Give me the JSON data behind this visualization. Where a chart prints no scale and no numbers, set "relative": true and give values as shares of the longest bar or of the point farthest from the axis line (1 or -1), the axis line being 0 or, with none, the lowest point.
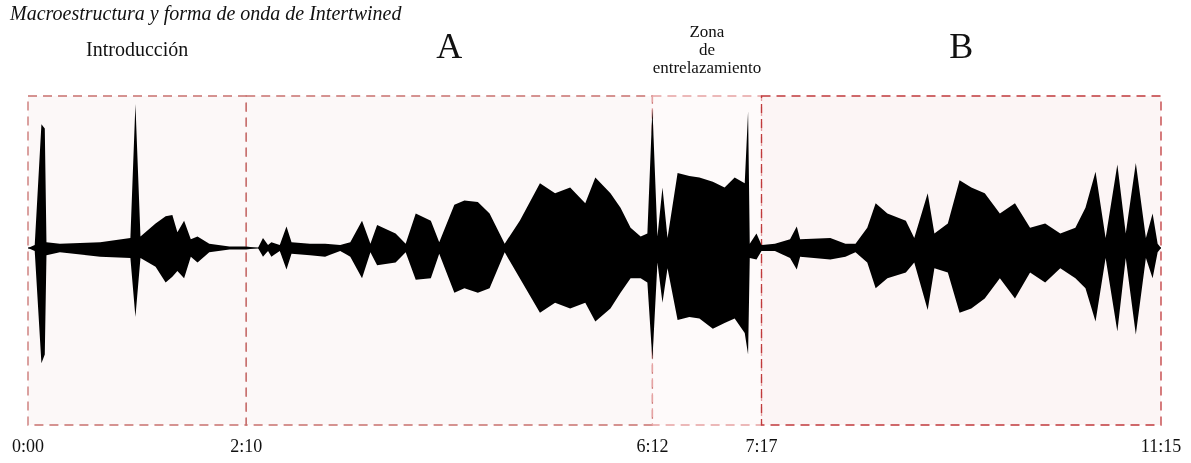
{
  "chart_data": {
    "type": "area",
    "title": "Macroestructura y forma de onda de Intertwined",
    "relative": true,
    "grid": false,
    "x": [
      0,
      4,
      8,
      10,
      11,
      19,
      43,
      61,
      64,
      67,
      76,
      82,
      86,
      89,
      93,
      97,
      101,
      108,
      120,
      130,
      137,
      140,
      143,
      145,
      150,
      154,
      157,
      168,
      177,
      186,
      192,
      199,
      204,
      208,
      219,
      225,
      231,
      240,
      245,
      254,
      260,
      268,
      275,
      284,
      293,
      305,
      314,
      323,
      332,
      338,
      347,
      353,
      359,
      365,
      369,
      372,
      375,
      378,
      381,
      387,
      394,
      400,
      408,
      415,
      421,
      427,
      429,
      430,
      434,
      437,
      445,
      454,
      458,
      460,
      478,
      487,
      493,
      500,
      505,
      512,
      523,
      528,
      536,
      540,
      548,
      555,
      562,
      570,
      579,
      588,
      597,
      606,
      615,
      624,
      630,
      636,
      642,
      649,
      654,
      660,
      666,
      670,
      673,
      675
    ],
    "series": [
      {
        "color": "#000000",
        "values": [
          0,
          0.02,
          0.86,
          0.83,
          0.04,
          0.03,
          0.04,
          0.07,
          1.0,
          0.08,
          0.17,
          0.22,
          0.23,
          0.11,
          0.19,
          0.06,
          0.08,
          0.03,
          0.01,
          0.01,
          0,
          0.07,
          0.02,
          0.04,
          0.02,
          0.15,
          0.04,
          0.03,
          0.03,
          0.02,
          0.04,
          0.19,
          0.03,
          0.16,
          0.1,
          0.03,
          0.24,
          0.19,
          0.04,
          0.3,
          0.33,
          0.32,
          0.24,
          0.03,
          0.19,
          0.45,
          0.38,
          0.42,
          0.31,
          0.49,
          0.38,
          0.28,
          0.14,
          0.08,
          0.1,
          0.97,
          0.08,
          0.42,
          0.07,
          0.52,
          0.5,
          0.49,
          0.46,
          0.42,
          0.49,
          0.45,
          0.95,
          0.03,
          0.1,
          0.02,
          0.03,
          0.06,
          0.15,
          0.06,
          0.07,
          0.03,
          0.03,
          0.14,
          0.31,
          0.24,
          0.19,
          0.07,
          0.38,
          0.1,
          0.17,
          0.47,
          0.42,
          0.38,
          0.24,
          0.31,
          0.14,
          0.17,
          0.1,
          0.14,
          0.28,
          0.53,
          0.07,
          0.58,
          0.1,
          0.59,
          0.07,
          0.24,
          0.03,
          0
        ]
      },
      {
        "color": "#000000",
        "values": [
          0,
          -0.02,
          -0.8,
          -0.74,
          -0.05,
          -0.03,
          -0.06,
          -0.07,
          -0.48,
          -0.07,
          -0.13,
          -0.24,
          -0.2,
          -0.16,
          -0.21,
          -0.06,
          -0.1,
          -0.03,
          -0.01,
          -0.01,
          0,
          -0.06,
          -0.02,
          -0.06,
          -0.02,
          -0.15,
          -0.04,
          -0.05,
          -0.06,
          -0.02,
          -0.06,
          -0.21,
          -0.03,
          -0.12,
          -0.1,
          -0.03,
          -0.22,
          -0.21,
          -0.04,
          -0.31,
          -0.28,
          -0.31,
          -0.28,
          -0.03,
          -0.21,
          -0.45,
          -0.38,
          -0.42,
          -0.38,
          -0.51,
          -0.42,
          -0.31,
          -0.21,
          -0.21,
          -0.24,
          -0.78,
          -0.1,
          -0.38,
          -0.14,
          -0.5,
          -0.48,
          -0.49,
          -0.56,
          -0.52,
          -0.49,
          -0.59,
          -0.74,
          -0.07,
          -0.08,
          -0.02,
          -0.02,
          -0.07,
          -0.15,
          -0.06,
          -0.08,
          -0.06,
          -0.03,
          -0.1,
          -0.28,
          -0.21,
          -0.17,
          -0.1,
          -0.43,
          -0.14,
          -0.17,
          -0.45,
          -0.42,
          -0.35,
          -0.21,
          -0.35,
          -0.17,
          -0.24,
          -0.14,
          -0.21,
          -0.28,
          -0.51,
          -0.07,
          -0.58,
          -0.07,
          -0.6,
          -0.07,
          -0.21,
          -0.03,
          0
        ]
      }
    ],
    "xlim": [
      0,
      675
    ],
    "xticks": [
      {
        "value": 0,
        "label": "0:00"
      },
      {
        "value": 130,
        "label": "2:10"
      },
      {
        "value": 372,
        "label": "6:12"
      },
      {
        "value": 437,
        "label": "7:17"
      },
      {
        "value": 675,
        "label": "11:15"
      }
    ],
    "bands": [
      {
        "axis": "x",
        "from": 0,
        "to": 130,
        "label": "Introducción",
        "color": "#c8706e"
      },
      {
        "axis": "x",
        "from": 130,
        "to": 372,
        "label": "A",
        "color": "#c8706e"
      },
      {
        "axis": "x",
        "from": 372,
        "to": 437,
        "label": "Zona de entrelazamiento",
        "color": "#e6a3a3"
      },
      {
        "axis": "x",
        "from": 437,
        "to": 675,
        "label": "B",
        "color": "#c0393b"
      }
    ]
  }
}
